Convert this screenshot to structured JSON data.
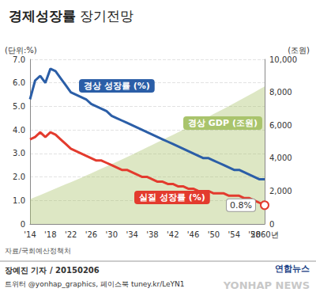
{
  "chart_data": {
    "type": "line",
    "title": "경제성장률 장기전망",
    "ylabel": "(단위:%)",
    "y2label": "(조원)",
    "categories": [
      "'14",
      null,
      null,
      null,
      "'18",
      null,
      null,
      null,
      "'22",
      null,
      null,
      null,
      "'26",
      null,
      null,
      null,
      "'30",
      null,
      null,
      null,
      "'34",
      null,
      null,
      null,
      "'38",
      null,
      null,
      null,
      "'42",
      null,
      null,
      null,
      "'46",
      null,
      null,
      null,
      "'50",
      null,
      null,
      null,
      "'54",
      null,
      null,
      null,
      "'58",
      null,
      "2060년"
    ],
    "series": [
      {
        "name": "경상 GDP (조원)",
        "type": "area",
        "axis": "y2",
        "color": "#a9c46c",
        "values": [
          1500,
          1630,
          1760,
          1890,
          2020,
          2150,
          2280,
          2410,
          2540,
          2670,
          2800,
          2940,
          3080,
          3220,
          3360,
          3500,
          3640,
          3780,
          3920,
          4060,
          4210,
          4360,
          4510,
          4660,
          4810,
          4960,
          5110,
          5260,
          5410,
          5560,
          5720,
          5880,
          6040,
          6200,
          6360,
          6520,
          6680,
          6840,
          7000,
          7160,
          7330,
          7500,
          7670,
          7840,
          8010,
          8180,
          8350
        ]
      },
      {
        "name": "경상 성장률 (%)",
        "type": "line",
        "color": "#2b5ea7",
        "values": [
          5.3,
          6.1,
          6.3,
          6.0,
          6.6,
          6.5,
          6.2,
          5.9,
          5.6,
          5.5,
          5.4,
          5.3,
          5.1,
          5.0,
          4.9,
          4.8,
          4.6,
          4.5,
          4.4,
          4.3,
          4.2,
          4.1,
          4.0,
          3.9,
          3.8,
          3.7,
          3.6,
          3.5,
          3.4,
          3.3,
          3.2,
          3.1,
          3.0,
          2.9,
          2.8,
          2.8,
          2.7,
          2.6,
          2.5,
          2.4,
          2.3,
          2.3,
          2.2,
          2.1,
          2.0,
          1.9,
          1.9
        ]
      },
      {
        "name": "실질 성장률 (%)",
        "type": "line",
        "color": "#e33b2e",
        "values": [
          3.6,
          3.7,
          3.9,
          3.7,
          3.9,
          3.8,
          3.6,
          3.4,
          3.2,
          3.1,
          3.0,
          2.9,
          2.8,
          2.7,
          2.7,
          2.6,
          2.5,
          2.4,
          2.3,
          2.3,
          2.2,
          2.1,
          2.0,
          2.0,
          1.9,
          1.8,
          1.8,
          1.7,
          1.7,
          1.6,
          1.6,
          1.5,
          1.5,
          1.4,
          1.4,
          1.4,
          1.3,
          1.3,
          1.3,
          1.2,
          1.2,
          1.2,
          1.1,
          1.1,
          1.0,
          0.9,
          0.8
        ]
      }
    ],
    "ylim": [
      0,
      7
    ],
    "yticks": [
      0,
      {
        "value": 1,
        "label": "1.0"
      },
      {
        "value": 2,
        "label": "2.0"
      },
      {
        "value": 3,
        "label": "3.0"
      },
      {
        "value": 4,
        "label": "4.0"
      },
      {
        "value": 5,
        "label": "5.0"
      },
      {
        "value": 6,
        "label": "6.0"
      },
      {
        "value": 7,
        "label": "7.0"
      }
    ],
    "y2lim": [
      0,
      10000
    ],
    "y2ticks": [
      0,
      {
        "value": 2000,
        "label": "2,000"
      },
      {
        "value": 4000,
        "label": "4,000"
      },
      {
        "value": 6000,
        "label": "6,000"
      },
      {
        "value": 8000,
        "label": "8,000"
      },
      {
        "value": 10000,
        "label": "10,000"
      }
    ],
    "grid": true,
    "annotations": [
      {
        "text": "0.8%",
        "x": "2060년",
        "series": "실질 성장률 (%)"
      }
    ],
    "source": "자료/국회예산정책처",
    "credits": [
      "장예진 기자 / 20150206",
      "트위터 @yonhap_graphics, 페이스북 tuney.kr/LeYN1"
    ],
    "logo": "연합뉴스",
    "watermark": "YONHAP NEWS"
  }
}
